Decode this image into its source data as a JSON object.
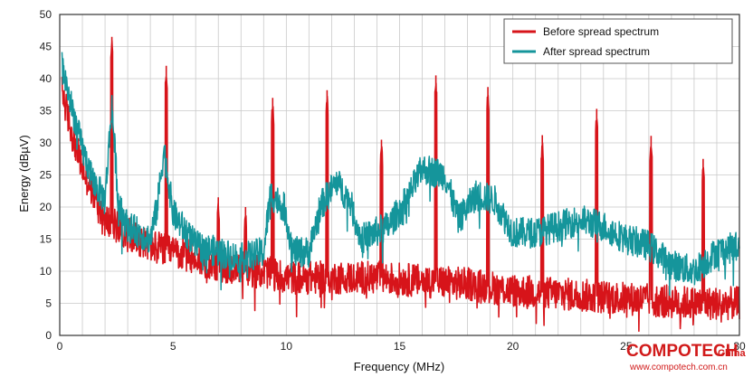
{
  "chart_data": {
    "type": "line",
    "title": "",
    "xlabel": "Frequency (MHz)",
    "ylabel": "Energy (dBµV)",
    "xlim": [
      0,
      30
    ],
    "ylim": [
      0,
      50
    ],
    "x_ticks": [
      0,
      5,
      10,
      15,
      20,
      25,
      30
    ],
    "y_ticks": [
      0,
      5,
      10,
      15,
      20,
      25,
      30,
      35,
      40,
      45,
      50
    ],
    "x_tick_labels": [
      "0",
      "5",
      "10",
      "15",
      "20",
      "25",
      "30"
    ],
    "y_tick_labels": [
      "0",
      "5",
      "10",
      "15",
      "20",
      "25",
      "30",
      "35",
      "40",
      "45",
      "50"
    ],
    "grid": true,
    "legend_position": "top-right",
    "series": [
      {
        "name": "Before spread spectrum",
        "color": "#d7141a",
        "baseline": [
          [
            0.1,
            38
          ],
          [
            0.5,
            32
          ],
          [
            1.0,
            26
          ],
          [
            1.5,
            22
          ],
          [
            2.0,
            18
          ],
          [
            3.0,
            16
          ],
          [
            4.0,
            14
          ],
          [
            5.0,
            13
          ],
          [
            6.0,
            12
          ],
          [
            7.0,
            11
          ],
          [
            8.0,
            10
          ],
          [
            9.0,
            10
          ],
          [
            10.0,
            9
          ],
          [
            12.0,
            9
          ],
          [
            14.0,
            9
          ],
          [
            16.0,
            8.5
          ],
          [
            18.0,
            8
          ],
          [
            20.0,
            7
          ],
          [
            22.0,
            6.5
          ],
          [
            24.0,
            6
          ],
          [
            26.0,
            5.5
          ],
          [
            28.0,
            5
          ],
          [
            30.0,
            5
          ]
        ],
        "peaks": [
          [
            2.3,
            46.5
          ],
          [
            4.7,
            42
          ],
          [
            7.0,
            21.5
          ],
          [
            8.2,
            20
          ],
          [
            9.4,
            37
          ],
          [
            11.8,
            38.2
          ],
          [
            14.2,
            30.5
          ],
          [
            16.6,
            40.5
          ],
          [
            18.9,
            38.7
          ],
          [
            21.3,
            31.2
          ],
          [
            23.7,
            35.3
          ],
          [
            26.1,
            31.1
          ],
          [
            28.4,
            27.5
          ]
        ]
      },
      {
        "name": "After spread spectrum",
        "color": "#15959b",
        "baseline": [
          [
            0.1,
            42
          ],
          [
            0.5,
            36
          ],
          [
            1.0,
            29
          ],
          [
            1.5,
            24
          ],
          [
            2.0,
            21
          ],
          [
            2.3,
            36
          ],
          [
            2.6,
            20
          ],
          [
            3.0,
            17
          ],
          [
            4.0,
            15
          ],
          [
            4.3,
            20
          ],
          [
            4.6,
            29
          ],
          [
            5.0,
            19
          ],
          [
            6.0,
            14
          ],
          [
            7.0,
            13
          ],
          [
            8.0,
            12
          ],
          [
            9.0,
            13
          ],
          [
            9.3,
            22
          ],
          [
            9.9,
            20
          ],
          [
            10.3,
            13
          ],
          [
            11.0,
            13
          ],
          [
            11.5,
            20
          ],
          [
            12.2,
            24
          ],
          [
            12.8,
            21
          ],
          [
            13.3,
            15
          ],
          [
            14.5,
            17
          ],
          [
            15.3,
            21
          ],
          [
            16.0,
            26
          ],
          [
            17.0,
            25
          ],
          [
            17.6,
            18
          ],
          [
            18.4,
            22
          ],
          [
            19.2,
            21
          ],
          [
            20.0,
            16
          ],
          [
            21.0,
            16
          ],
          [
            22.0,
            17
          ],
          [
            23.0,
            18
          ],
          [
            24.0,
            17
          ],
          [
            25.0,
            15
          ],
          [
            26.0,
            14
          ],
          [
            27.0,
            11
          ],
          [
            28.0,
            10
          ],
          [
            29.0,
            13
          ],
          [
            30.0,
            14
          ]
        ]
      }
    ]
  },
  "watermark": {
    "main": "COMPOTECH",
    "sub": "China",
    "url": "www.compotech.com.cn"
  }
}
